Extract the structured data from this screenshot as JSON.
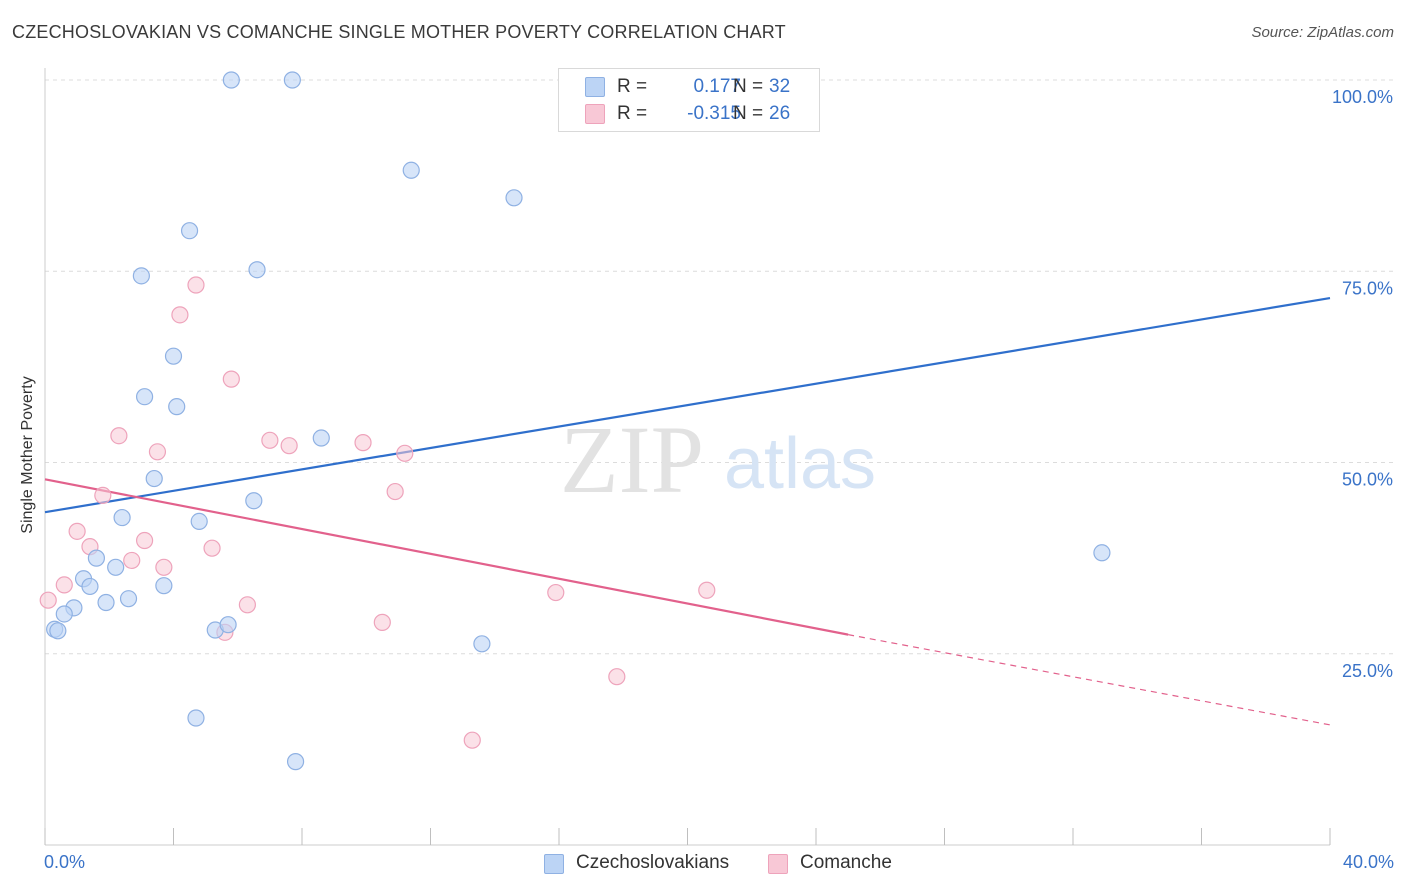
{
  "header": {
    "title": "CZECHOSLOVAKIAN VS COMANCHE SINGLE MOTHER POVERTY CORRELATION CHART",
    "source": "Source: ZipAtlas.com"
  },
  "watermark": {
    "zip": "ZIP",
    "atlas": "atlas"
  },
  "legend": {
    "rows": [
      {
        "r_label": "R =",
        "r_value": "0.177",
        "n_label": "N =",
        "n_value": "32"
      },
      {
        "r_label": "R =",
        "r_value": "-0.315",
        "n_label": "N =",
        "n_value": "26"
      }
    ]
  },
  "bottom_legend": [
    "Czechoslovakians",
    "Comanche"
  ],
  "colors": {
    "blue_fill": "#bcd4f5",
    "blue_stroke": "#8fb1e3",
    "blue_line": "#2f6fcc",
    "pink_fill": "#f8c8d6",
    "pink_stroke": "#eea3bb",
    "pink_line": "#e2618c",
    "axis_text": "#3a73c8",
    "grid": "#dcdcdc"
  },
  "chart_data": {
    "type": "scatter",
    "title": "CZECHOSLOVAKIAN VS COMANCHE SINGLE MOTHER POVERTY CORRELATION CHART",
    "xlabel": "",
    "ylabel": "Single Mother Poverty",
    "xlim": [
      0,
      40
    ],
    "ylim": [
      0,
      100
    ],
    "x_tick_labels": [
      "0.0%",
      "40.0%"
    ],
    "y_ticks": [
      25,
      50,
      75,
      100
    ],
    "y_tick_labels": [
      "25.0%",
      "50.0%",
      "75.0%",
      "100.0%"
    ],
    "grid": true,
    "legend_position": "top-center",
    "series": [
      {
        "name": "Czechoslovakians",
        "color": "#bcd4f5",
        "r": 0.177,
        "n": 32,
        "points": [
          [
            5.8,
            100.0
          ],
          [
            7.7,
            100.0
          ],
          [
            11.4,
            88.2
          ],
          [
            14.6,
            84.6
          ],
          [
            4.5,
            80.3
          ],
          [
            3.0,
            74.4
          ],
          [
            6.6,
            75.2
          ],
          [
            4.0,
            63.9
          ],
          [
            3.1,
            58.6
          ],
          [
            4.1,
            57.3
          ],
          [
            8.6,
            53.2
          ],
          [
            3.4,
            47.9
          ],
          [
            6.5,
            45.0
          ],
          [
            2.4,
            42.8
          ],
          [
            4.8,
            42.3
          ],
          [
            1.6,
            37.5
          ],
          [
            2.2,
            36.3
          ],
          [
            1.2,
            34.8
          ],
          [
            1.4,
            33.8
          ],
          [
            3.7,
            33.9
          ],
          [
            2.6,
            32.2
          ],
          [
            1.9,
            31.7
          ],
          [
            0.9,
            31.0
          ],
          [
            0.6,
            30.2
          ],
          [
            0.3,
            28.2
          ],
          [
            0.4,
            28.0
          ],
          [
            5.3,
            28.1
          ],
          [
            5.7,
            28.8
          ],
          [
            13.6,
            26.3
          ],
          [
            4.7,
            16.6
          ],
          [
            7.8,
            10.9
          ],
          [
            32.9,
            38.2
          ]
        ],
        "trend": {
          "x": [
            0,
            40
          ],
          "y": [
            43.5,
            71.5
          ],
          "style": "solid"
        }
      },
      {
        "name": "Comanche",
        "color": "#f8c8d6",
        "r": -0.315,
        "n": 26,
        "points": [
          [
            4.7,
            73.2
          ],
          [
            4.2,
            69.3
          ],
          [
            5.8,
            60.9
          ],
          [
            2.3,
            53.5
          ],
          [
            3.5,
            51.4
          ],
          [
            7.0,
            52.9
          ],
          [
            7.6,
            52.2
          ],
          [
            9.9,
            52.6
          ],
          [
            11.2,
            51.2
          ],
          [
            10.9,
            46.2
          ],
          [
            1.8,
            45.7
          ],
          [
            1.0,
            41.0
          ],
          [
            3.1,
            39.8
          ],
          [
            1.4,
            39.0
          ],
          [
            5.2,
            38.8
          ],
          [
            2.7,
            37.2
          ],
          [
            3.7,
            36.3
          ],
          [
            0.6,
            34.0
          ],
          [
            0.1,
            32.0
          ],
          [
            6.3,
            31.4
          ],
          [
            15.9,
            33.0
          ],
          [
            20.6,
            33.3
          ],
          [
            5.6,
            27.8
          ],
          [
            10.5,
            29.1
          ],
          [
            17.8,
            22.0
          ],
          [
            13.3,
            13.7
          ]
        ],
        "trend": {
          "x": [
            0,
            25
          ],
          "y": [
            47.8,
            27.5
          ],
          "style": "solid"
        },
        "trend_extension": {
          "x": [
            25,
            40
          ],
          "y": [
            27.5,
            15.7
          ],
          "style": "dashed"
        }
      }
    ]
  }
}
